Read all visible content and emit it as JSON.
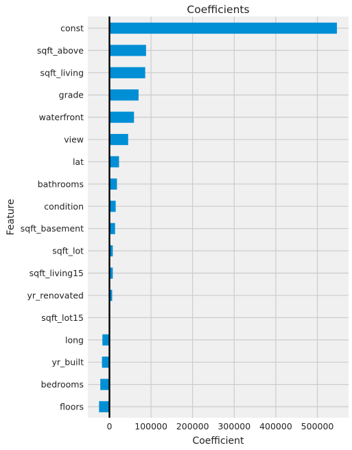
{
  "chart_data": {
    "type": "bar",
    "orientation": "horizontal",
    "title": "Coefficients",
    "xlabel": "Coefficient",
    "ylabel": "Feature",
    "categories": [
      "const",
      "sqft_above",
      "sqft_living",
      "grade",
      "waterfront",
      "view",
      "lat",
      "bathrooms",
      "condition",
      "sqft_basement",
      "sqft_lot",
      "sqft_living15",
      "yr_renovated",
      "sqft_lot15",
      "long",
      "yr_built",
      "bedrooms",
      "floors"
    ],
    "values": [
      547000,
      88000,
      86000,
      70000,
      59000,
      45000,
      23000,
      18000,
      15000,
      13500,
      8000,
      8000,
      6500,
      500,
      -17000,
      -18000,
      -22000,
      -25000
    ],
    "xlim": [
      -52000,
      575000
    ],
    "xticks": [
      0,
      100000,
      200000,
      300000,
      400000,
      500000
    ],
    "grid": true,
    "bar_color": "#008fd5",
    "background_color": "#f0f0f0",
    "grid_color": "#cbcbcb"
  }
}
